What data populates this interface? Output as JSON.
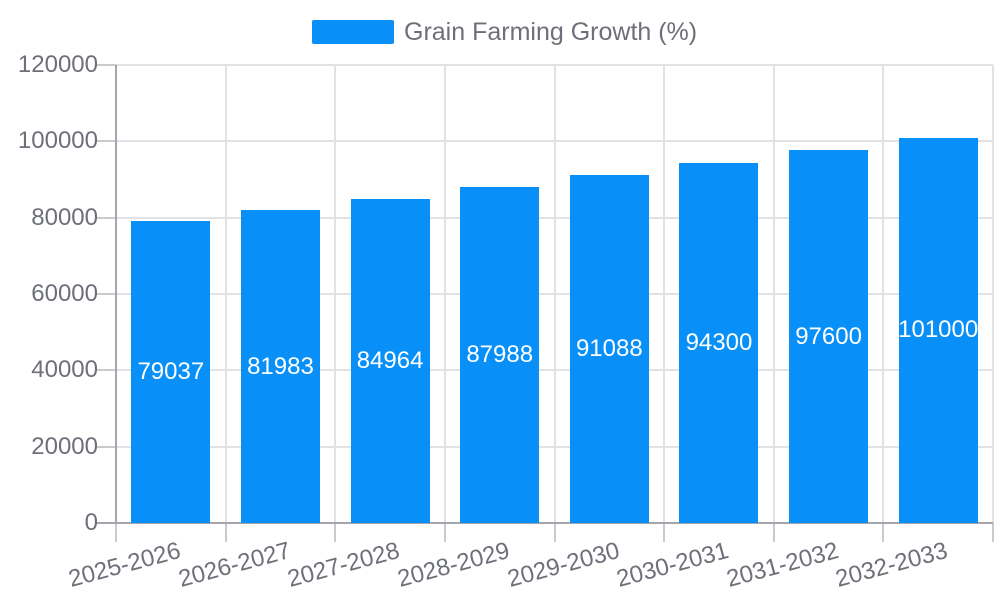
{
  "chart_data": {
    "type": "bar",
    "title": "",
    "legend": [
      "Grain Farming Growth (%)"
    ],
    "legend_position": "top-center",
    "categories": [
      "2025-2026",
      "2026-2027",
      "2027-2028",
      "2028-2029",
      "2029-2030",
      "2030-2031",
      "2031-2032",
      "2032-2033"
    ],
    "series": [
      {
        "name": "Grain Farming Growth (%)",
        "values": [
          79037,
          81983,
          84964,
          87988,
          91088,
          94300,
          97600,
          101000
        ]
      }
    ],
    "value_labels_shown": true,
    "value_label_position": "inside-center",
    "xlabel": "",
    "ylabel": "",
    "ylim": [
      0,
      120000
    ],
    "yticks": [
      0,
      20000,
      40000,
      60000,
      80000,
      100000,
      120000
    ],
    "grid": true,
    "x_label_rotate_deg": -15,
    "bar_color": "#0890F8",
    "value_label_color": "#FFFFFF"
  }
}
